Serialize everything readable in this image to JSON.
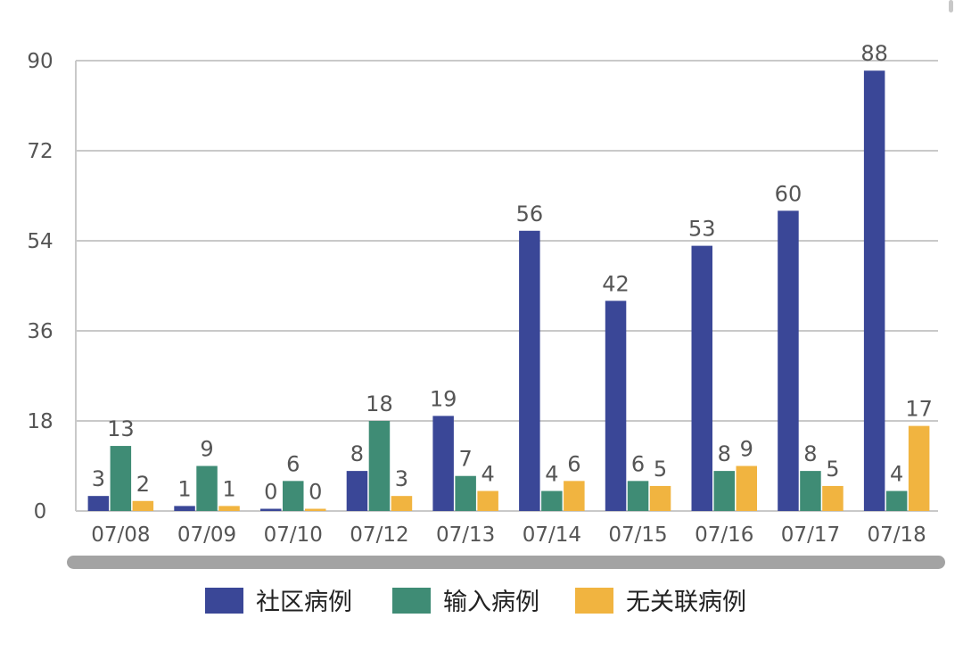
{
  "chart_data": {
    "type": "bar",
    "title": "",
    "xlabel": "",
    "ylabel": "",
    "categories": [
      "07/08",
      "07/09",
      "07/10",
      "07/12",
      "07/13",
      "07/14",
      "07/15",
      "07/16",
      "07/17",
      "07/18"
    ],
    "series": [
      {
        "name": "社区病例",
        "color": "#3a4797",
        "values": [
          3,
          1,
          0,
          8,
          19,
          56,
          42,
          53,
          60,
          88
        ]
      },
      {
        "name": "输入病例",
        "color": "#3f8c75",
        "values": [
          13,
          9,
          6,
          18,
          7,
          4,
          6,
          8,
          8,
          4
        ]
      },
      {
        "name": "无关联病例",
        "color": "#f1b440",
        "values": [
          2,
          1,
          0,
          3,
          4,
          6,
          5,
          9,
          5,
          17
        ]
      }
    ],
    "ylim": [
      0,
      90
    ],
    "yticks": [
      0,
      18,
      36,
      54,
      72,
      90
    ],
    "grid": true,
    "legend_position": "bottom",
    "data_labels": true
  }
}
